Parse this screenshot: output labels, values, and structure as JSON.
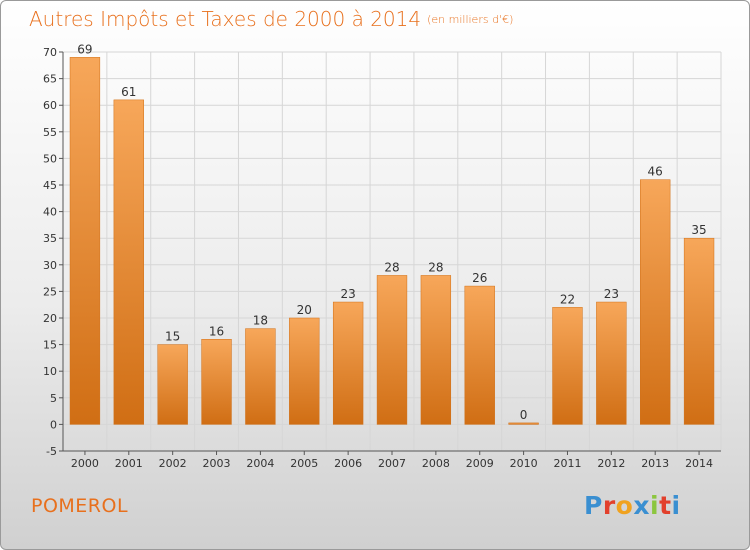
{
  "title": {
    "main": "Autres Impôts et Taxes de 2000 à 2014",
    "unit": "(en milliers d'€)"
  },
  "commune": "POMEROL",
  "logo": {
    "text": "Proxiti",
    "letter_colors": [
      "#3a8fd1",
      "#e2402c",
      "#f0a21f",
      "#3a8fd1",
      "#8cc63f",
      "#e2402c",
      "#3a8fd1"
    ]
  },
  "colors": {
    "accent": "#e8701d",
    "bar_light": "#f7a75a",
    "bar_dark": "#d06e14",
    "grid": "#d6d6d6",
    "axis": "#555555"
  },
  "chart_data": {
    "type": "bar",
    "title": "Autres Impôts et Taxes de 2000 à 2014",
    "subtitle": "(en milliers d'€)",
    "xlabel": "",
    "ylabel": "",
    "categories": [
      "2000",
      "2001",
      "2002",
      "2003",
      "2004",
      "2005",
      "2006",
      "2007",
      "2008",
      "2009",
      "2010",
      "2011",
      "2012",
      "2013",
      "2014"
    ],
    "values": [
      69,
      61,
      15,
      16,
      18,
      20,
      23,
      28,
      28,
      26,
      0,
      22,
      23,
      46,
      35
    ],
    "data_labels": [
      "69",
      "61",
      "15",
      "16",
      "18",
      "20",
      "23",
      "28",
      "28",
      "26",
      "0",
      "22",
      "23",
      "46",
      "35"
    ],
    "ylim": [
      -5,
      70
    ],
    "yticks": [
      -5,
      0,
      5,
      10,
      15,
      20,
      25,
      30,
      35,
      40,
      45,
      50,
      55,
      60,
      65,
      70
    ],
    "ytick_labels": [
      "-5",
      "0",
      "5",
      "10",
      "15",
      "20",
      "25",
      "30",
      "35",
      "40",
      "45",
      "50",
      "55",
      "60",
      "65",
      "70"
    ],
    "grid": true,
    "legend": "none"
  }
}
